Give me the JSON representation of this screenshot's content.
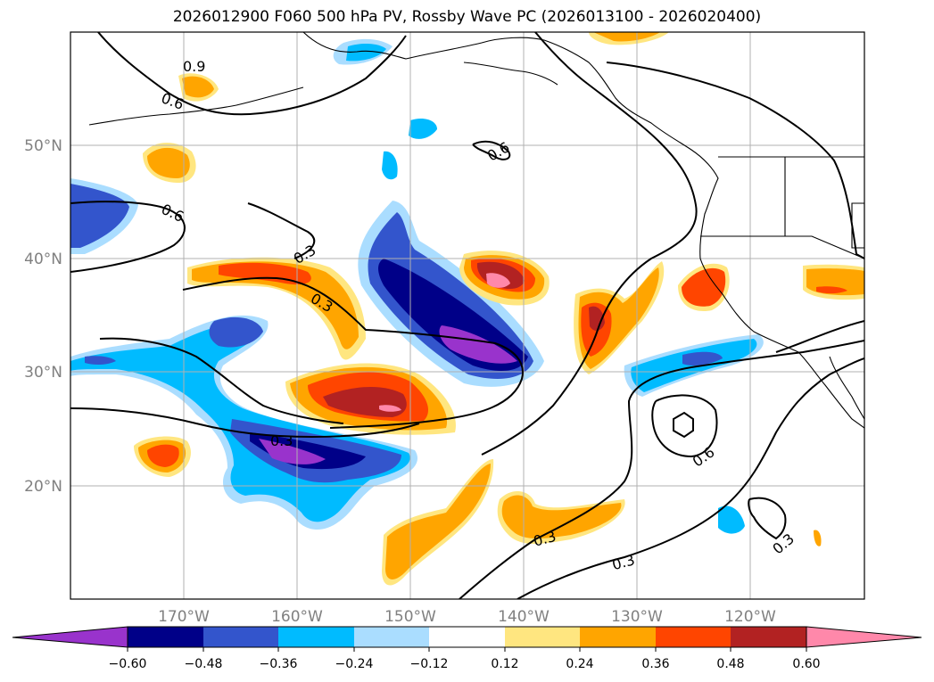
{
  "title": "2026012900 F060 500 hPa PV, Rossby Wave PC (2026013100 - 2026020400)",
  "map": {
    "lat_labels": [
      "50°N",
      "40°N",
      "30°N",
      "20°N"
    ],
    "lon_labels": [
      "170°W",
      "160°W",
      "150°W",
      "140°W",
      "130°W",
      "120°W"
    ],
    "lat_range": [
      10,
      60
    ],
    "lon_range": [
      -180,
      -110
    ],
    "grid": true,
    "contour_labels": [
      "0.9",
      "0.6",
      "0.6",
      "0.3",
      "0.3",
      "0.6",
      "0.3",
      "0.3",
      "0.3",
      "0.6",
      "0.3"
    ]
  },
  "colorbar": {
    "ticks": [
      "−0.60",
      "−0.48",
      "−0.36",
      "−0.24",
      "−0.12",
      "0.12",
      "0.24",
      "0.36",
      "0.48",
      "0.60"
    ],
    "colors": [
      "#9933cc",
      "#000088",
      "#3355cc",
      "#00bbff",
      "#aaddff",
      "#ffffff",
      "#ffe680",
      "#ffa500",
      "#ff4500",
      "#b22222",
      "#ff88aa"
    ],
    "extend": "both"
  }
}
